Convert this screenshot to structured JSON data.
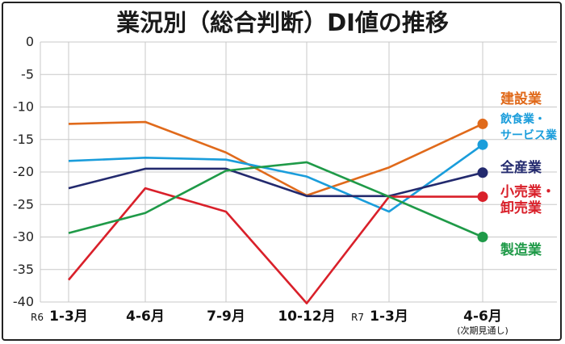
{
  "chart_data": {
    "type": "line",
    "title": "業況別（総合判断）DI値の推移",
    "categories": [
      "1-3月",
      "4-6月",
      "7-9月",
      "10-12月",
      "1-3月",
      "4-6月"
    ],
    "category_prefixes": [
      "R6",
      "",
      "",
      "",
      "R7",
      ""
    ],
    "category_note": "(次期見通し)",
    "ylim": [
      -40,
      0
    ],
    "yticks": [
      0,
      -5,
      -10,
      -15,
      -20,
      -25,
      -30,
      -35,
      -40
    ],
    "grid": true,
    "series": [
      {
        "name": "建設業",
        "label_lines": [
          "建設業"
        ],
        "color": "#e06a1b",
        "values": [
          -12.6,
          -12.3,
          -17.0,
          -23.6,
          -19.3,
          -12.6
        ]
      },
      {
        "name": "飲食業・サービス業",
        "label_lines": [
          "飲食業・",
          "サービス業"
        ],
        "color": "#1a9ddb",
        "values": [
          -18.3,
          -17.8,
          -18.1,
          -20.7,
          -26.1,
          -15.8
        ]
      },
      {
        "name": "全産業",
        "label_lines": [
          "全産業"
        ],
        "color": "#232a6e",
        "values": [
          -22.5,
          -19.5,
          -19.5,
          -23.7,
          -23.7,
          -20.1
        ]
      },
      {
        "name": "小売業・卸売業",
        "label_lines": [
          "小売業・",
          "卸売業"
        ],
        "color": "#d9202a",
        "values": [
          -36.6,
          -22.5,
          -26.1,
          -40.2,
          -23.8,
          -23.8
        ]
      },
      {
        "name": "製造業",
        "label_lines": [
          "製造業"
        ],
        "color": "#1f9a48",
        "values": [
          -29.4,
          -26.3,
          -19.8,
          -18.5,
          -23.8,
          -30.0
        ]
      }
    ]
  }
}
